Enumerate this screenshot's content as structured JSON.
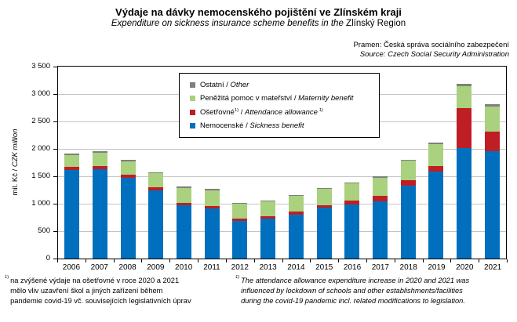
{
  "header": {
    "title": "Výdaje na dávky nemocenského pojištění ve Zlínském kraji",
    "subtitle_part1": "Expenditure on sickness insurance scheme benefits in the ",
    "subtitle_part2": "Zlínský Region"
  },
  "source": {
    "line1": "Pramen: Česká správa sociálního zabezpečení",
    "line2": "Source: Czech Social Security Administration"
  },
  "axis": {
    "ylabel_cz": "mil. Kč",
    "separator": " / ",
    "ylabel_en": "CZK million"
  },
  "legend": {
    "separator": " / "
  },
  "chart_data": {
    "type": "bar",
    "stacked": true,
    "grid": true,
    "legend_position": "top-inside",
    "ylim": [
      0,
      3500
    ],
    "ytick_step": 500,
    "ytick_labels": [
      "0",
      "500",
      "1 000",
      "1 500",
      "2 000",
      "2 500",
      "3 000",
      "3 500"
    ],
    "categories": [
      "2006",
      "2007",
      "2008",
      "2009",
      "2010",
      "2011",
      "2012",
      "2013",
      "2014",
      "2015",
      "2016",
      "2017",
      "2018",
      "2019",
      "2020",
      "2021"
    ],
    "series": [
      {
        "key": "nemocenske",
        "label_cz": "Nemocenské",
        "label_en": "Sickness benefit",
        "footnote_marker": "",
        "color": "#0070BE",
        "values": [
          1615,
          1625,
          1470,
          1250,
          965,
          915,
          690,
          735,
          805,
          930,
          990,
          1045,
          1335,
          1590,
          2015,
          1960
        ]
      },
      {
        "key": "osetrovne",
        "label_cz": "Ošetřovné",
        "label_en": "Attendance allowance",
        "footnote_marker": "1)",
        "color": "#BE1E24",
        "values": [
          57,
          62,
          60,
          48,
          45,
          40,
          35,
          40,
          45,
          47,
          62,
          95,
          95,
          100,
          730,
          355
        ]
      },
      {
        "key": "materstvi",
        "label_cz": "Peněžitá pomoc v mateřství",
        "label_en": "Maternity benefit",
        "footnote_marker": "",
        "color": "#A9D17E",
        "values": [
          220,
          240,
          245,
          262,
          280,
          290,
          280,
          270,
          285,
          288,
          315,
          335,
          350,
          395,
          395,
          460
        ]
      },
      {
        "key": "ostatni",
        "label_cz": "Ostatní",
        "label_en": "Other",
        "footnote_marker": "",
        "color": "#7F7F7F",
        "values": [
          28,
          28,
          27,
          18,
          20,
          20,
          10,
          15,
          15,
          15,
          25,
          25,
          25,
          25,
          40,
          40
        ]
      }
    ]
  },
  "footnotes": {
    "marker": "1)",
    "cz_lines": [
      "na zvýšené výdaje na ošetřovné v roce 2020 a 2021",
      "mělo vliv uzavření škol a jiných zařízení během",
      "pandemie covid-19 vč. souvisejících legislativních úprav"
    ],
    "en_lines": [
      "The attendance allowance expenditure increase in 2020 and 2021 was",
      "influenced by lockdown of schools and other establishments/facilities",
      "during the covid-19 pandemic incl. related modifications to legislation."
    ]
  }
}
